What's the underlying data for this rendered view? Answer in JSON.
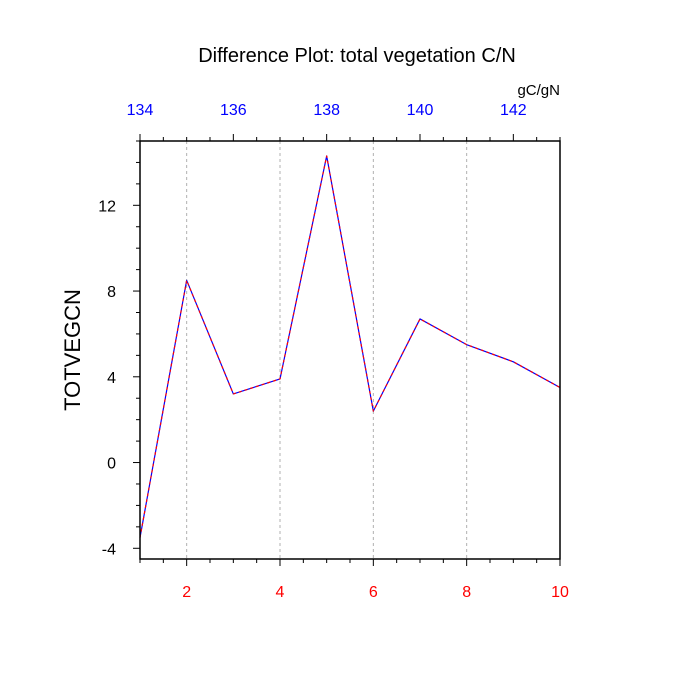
{
  "chart_data": {
    "type": "line",
    "title": "Difference Plot: total vegetation C/N",
    "ylabel": "TOTVEGCN",
    "x": [
      1,
      2,
      3,
      4,
      5,
      6,
      7,
      8,
      9,
      10
    ],
    "xlim": [
      1,
      10
    ],
    "xticks": [
      2,
      4,
      6,
      8,
      10
    ],
    "xtick_labels": [
      "2",
      "4",
      "6",
      "8",
      "10"
    ],
    "xtick_color": "#ff0000",
    "top_axis": {
      "unit_label": "gC/gN",
      "ticks": [
        134,
        136,
        138,
        140,
        142
      ],
      "tick_labels": [
        "134",
        "136",
        "138",
        "140",
        "142"
      ],
      "xlim": [
        134,
        143
      ],
      "tick_color": "#0000ff"
    },
    "ylim": [
      -4.5,
      15
    ],
    "yticks": [
      -4,
      0,
      4,
      8,
      12
    ],
    "ytick_labels": [
      "-4",
      "0",
      "4",
      "8",
      "12"
    ],
    "series": [
      {
        "values": [
          -3.5,
          8.5,
          3.2,
          3.9,
          14.3,
          2.4,
          6.7,
          5.5,
          4.7,
          3.5
        ],
        "color": "#0000ff",
        "overlay_color": "#ff0000",
        "style": "dashed"
      }
    ],
    "vertical_grid": true,
    "grid_color": "#b0b0b0"
  }
}
